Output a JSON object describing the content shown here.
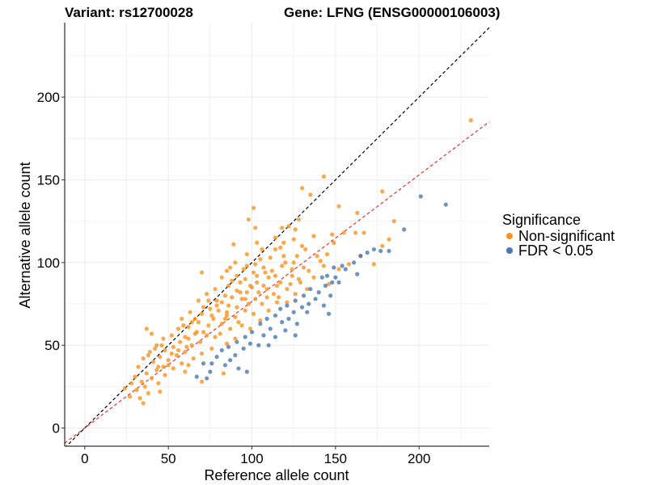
{
  "chart_data": {
    "type": "scatter",
    "title_left": "Variant: rs12700028",
    "title_right": "Gene: LFNG (ENSG00000106003)",
    "xlabel": "Reference allele count",
    "ylabel": "Alternative allele count",
    "xlim": [
      -12,
      242
    ],
    "ylim": [
      -11,
      245
    ],
    "xticks": [
      0,
      50,
      100,
      150,
      200
    ],
    "yticks": [
      0,
      50,
      100,
      150,
      200
    ],
    "grid": true,
    "legend": {
      "title": "Significance",
      "position": "right",
      "entries": [
        {
          "label": "Non-significant",
          "color": "#F7941D"
        },
        {
          "label": "FDR < 0.05",
          "color": "#4A78AE"
        }
      ]
    },
    "reference_lines": [
      {
        "name": "identity",
        "intercept": 0,
        "slope": 1.0,
        "color": "#000000",
        "style": "dashed"
      },
      {
        "name": "fit",
        "intercept": 0,
        "slope": 0.765,
        "color": "#E8312F",
        "style": "dashed"
      }
    ],
    "series": [
      {
        "name": "Non-significant",
        "color": "#F7941D",
        "points": [
          [
            231,
            186
          ],
          [
            143,
            152
          ],
          [
            130,
            145
          ],
          [
            135,
            141
          ],
          [
            178,
            143
          ],
          [
            163,
            130
          ],
          [
            101,
            133
          ],
          [
            152,
            134
          ],
          [
            185,
            125
          ],
          [
            128,
            126
          ],
          [
            122,
            122
          ],
          [
            102,
            121
          ],
          [
            118,
            121
          ],
          [
            162,
            118
          ],
          [
            137,
            116
          ],
          [
            155,
            118
          ],
          [
            149,
            112
          ],
          [
            103,
            112
          ],
          [
            114,
            115
          ],
          [
            125,
            114
          ],
          [
            130,
            110
          ],
          [
            106,
            108
          ],
          [
            97,
            105
          ],
          [
            111,
            103
          ],
          [
            132,
            108
          ],
          [
            119,
            104
          ],
          [
            127,
            104
          ],
          [
            139,
            104
          ],
          [
            145,
            105
          ],
          [
            90,
            100
          ],
          [
            102,
            99
          ],
          [
            125,
            100
          ],
          [
            118,
            98
          ],
          [
            131,
            97
          ],
          [
            143,
            98
          ],
          [
            95,
            96
          ],
          [
            108,
            94
          ],
          [
            85,
            95
          ],
          [
            114,
            92
          ],
          [
            124,
            92
          ],
          [
            70,
            94
          ],
          [
            82,
            91
          ],
          [
            96,
            90
          ],
          [
            103,
            92
          ],
          [
            110,
            91
          ],
          [
            137,
            91
          ],
          [
            117,
            88
          ],
          [
            128,
            90
          ],
          [
            93,
            88
          ],
          [
            99,
            86
          ],
          [
            107,
            86
          ],
          [
            86,
            86
          ],
          [
            121,
            84
          ],
          [
            78,
            84
          ],
          [
            91,
            83
          ],
          [
            97,
            82
          ],
          [
            104,
            82
          ],
          [
            113,
            81
          ],
          [
            73,
            81
          ],
          [
            126,
            81
          ],
          [
            84,
            80
          ],
          [
            88,
            79
          ],
          [
            94,
            78
          ],
          [
            102,
            78
          ],
          [
            109,
            79
          ],
          [
            68,
            77
          ],
          [
            79,
            77
          ],
          [
            115,
            76
          ],
          [
            121,
            76
          ],
          [
            98,
            75
          ],
          [
            106,
            75
          ],
          [
            86,
            74
          ],
          [
            91,
            73
          ],
          [
            75,
            72
          ],
          [
            80,
            71
          ],
          [
            96,
            71
          ],
          [
            110,
            71
          ],
          [
            63,
            70
          ],
          [
            70,
            69
          ],
          [
            85,
            68
          ],
          [
            101,
            69
          ],
          [
            90,
            67
          ],
          [
            77,
            66
          ],
          [
            58,
            66
          ],
          [
            105,
            65
          ],
          [
            68,
            64
          ],
          [
            82,
            63
          ],
          [
            94,
            62
          ],
          [
            74,
            62
          ],
          [
            62,
            61
          ],
          [
            87,
            60
          ],
          [
            56,
            60
          ],
          [
            99,
            60
          ],
          [
            71,
            58
          ],
          [
            66,
            57
          ],
          [
            81,
            57
          ],
          [
            52,
            56
          ],
          [
            60,
            55
          ],
          [
            78,
            55
          ],
          [
            90,
            54
          ],
          [
            47,
            54
          ],
          [
            57,
            52
          ],
          [
            69,
            52
          ],
          [
            85,
            51
          ],
          [
            43,
            50
          ],
          [
            64,
            50
          ],
          [
            53,
            49
          ],
          [
            76,
            48
          ],
          [
            48,
            47
          ],
          [
            60,
            46
          ],
          [
            39,
            46
          ],
          [
            70,
            45
          ],
          [
            55,
            44
          ],
          [
            45,
            43
          ],
          [
            65,
            42
          ],
          [
            35,
            42
          ],
          [
            50,
            41
          ],
          [
            41,
            40
          ],
          [
            58,
            39
          ],
          [
            62,
            38
          ],
          [
            47,
            37
          ],
          [
            32,
            37
          ],
          [
            53,
            36
          ],
          [
            43,
            35
          ],
          [
            37,
            33
          ],
          [
            60,
            34
          ],
          [
            48,
            32
          ],
          [
            40,
            30
          ],
          [
            30,
            31
          ],
          [
            34,
            28
          ],
          [
            28,
            27
          ],
          [
            44,
            27
          ],
          [
            36,
            25
          ],
          [
            24,
            24
          ],
          [
            31,
            23
          ],
          [
            38,
            21
          ],
          [
            27,
            19
          ],
          [
            33,
            18
          ],
          [
            35,
            15
          ],
          [
            45,
            22
          ],
          [
            70,
            28
          ],
          [
            83,
            33
          ],
          [
            37,
            60
          ],
          [
            40,
            57
          ],
          [
            98,
            126
          ],
          [
            148,
            117
          ],
          [
            178,
            110
          ],
          [
            182,
            114
          ],
          [
            167,
            118
          ],
          [
            116,
            79
          ],
          [
            112,
            95
          ],
          [
            120,
            100
          ],
          [
            89,
            111
          ],
          [
            74,
            77
          ],
          [
            66,
            66
          ],
          [
            62,
            54
          ],
          [
            50,
            38
          ],
          [
            56,
            47
          ],
          [
            73,
            56
          ],
          [
            85,
            70
          ],
          [
            92,
            64
          ],
          [
            96,
            78
          ],
          [
            100,
            85
          ],
          [
            107,
            97
          ],
          [
            114,
            108
          ],
          [
            119,
            112
          ],
          [
            124,
            96
          ],
          [
            129,
            88
          ],
          [
            134,
            95
          ],
          [
            141,
            101
          ],
          [
            146,
            87
          ],
          [
            152,
            96
          ],
          [
            158,
            99
          ],
          [
            165,
            104
          ],
          [
            173,
            99
          ],
          [
            88,
            89
          ],
          [
            93,
            82
          ],
          [
            79,
            74
          ],
          [
            84,
            66
          ],
          [
            71,
            73
          ],
          [
            64,
            64
          ],
          [
            59,
            62
          ],
          [
            42,
            48
          ],
          [
            38,
            44
          ],
          [
            46,
            50
          ],
          [
            52,
            45
          ],
          [
            44,
            37
          ],
          [
            61,
            49
          ],
          [
            67,
            58
          ],
          [
            76,
            68
          ],
          [
            82,
            76
          ],
          [
            103,
            88
          ],
          [
            109,
            84
          ],
          [
            115,
            86
          ],
          [
            123,
            87
          ],
          [
            133,
            84
          ],
          [
            101,
            94
          ],
          [
            97,
            98
          ],
          [
            91,
            92
          ],
          [
            87,
            97
          ],
          [
            105,
            102
          ],
          [
            117,
            109
          ],
          [
            126,
            120
          ]
        ]
      },
      {
        "name": "FDR < 0.05",
        "color": "#4A78AE",
        "points": [
          [
            201,
            140
          ],
          [
            216,
            135
          ],
          [
            191,
            120
          ],
          [
            173,
            108
          ],
          [
            177,
            107
          ],
          [
            182,
            107
          ],
          [
            169,
            106
          ],
          [
            165,
            104
          ],
          [
            161,
            100
          ],
          [
            154,
            98
          ],
          [
            149,
            97
          ],
          [
            156,
            96
          ],
          [
            163,
            93
          ],
          [
            150,
            91
          ],
          [
            145,
            92
          ],
          [
            142,
            91
          ],
          [
            148,
            88
          ],
          [
            144,
            86
          ],
          [
            152,
            88
          ],
          [
            135,
            84
          ],
          [
            140,
            82
          ],
          [
            147,
            80
          ],
          [
            131,
            80
          ],
          [
            138,
            78
          ],
          [
            126,
            77
          ],
          [
            134,
            75
          ],
          [
            121,
            74
          ],
          [
            130,
            73
          ],
          [
            143,
            74
          ],
          [
            117,
            72
          ],
          [
            125,
            70
          ],
          [
            133,
            70
          ],
          [
            114,
            68
          ],
          [
            122,
            66
          ],
          [
            146,
            69
          ],
          [
            109,
            66
          ],
          [
            118,
            64
          ],
          [
            127,
            63
          ],
          [
            105,
            63
          ],
          [
            111,
            60
          ],
          [
            120,
            59
          ],
          [
            100,
            58
          ],
          [
            107,
            56
          ],
          [
            96,
            55
          ],
          [
            114,
            55
          ],
          [
            126,
            56
          ],
          [
            91,
            52
          ],
          [
            99,
            51
          ],
          [
            110,
            50
          ],
          [
            86,
            49
          ],
          [
            95,
            48
          ],
          [
            104,
            50
          ],
          [
            82,
            47
          ],
          [
            90,
            44
          ],
          [
            79,
            43
          ],
          [
            87,
            41
          ],
          [
            76,
            39
          ],
          [
            71,
            39
          ],
          [
            84,
            38
          ],
          [
            92,
            36
          ],
          [
            97,
            34
          ],
          [
            75,
            34
          ],
          [
            67,
            31
          ],
          [
            73,
            30
          ]
        ]
      }
    ]
  }
}
